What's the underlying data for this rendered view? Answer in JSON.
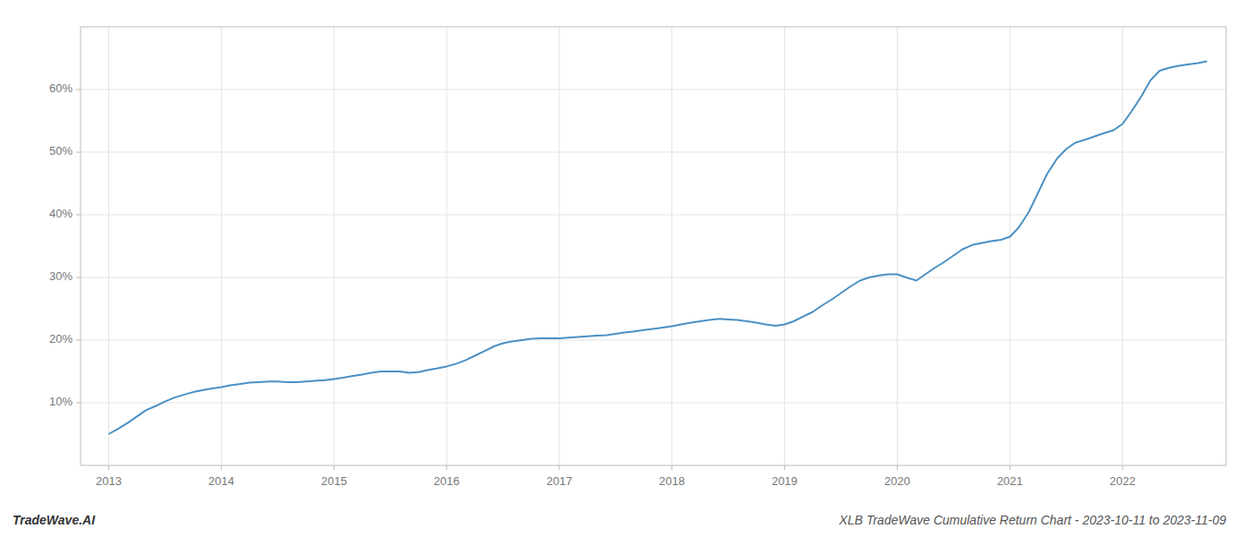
{
  "chart_data": {
    "type": "line",
    "title": "XLB TradeWave Cumulative Return Chart - 2023-10-11 to 2023-11-09",
    "annotations": [
      "TradeWave.AI"
    ],
    "color": "#4a90c4",
    "grid": true,
    "x": [
      2013.0,
      2013.08,
      2013.17,
      2013.25,
      2013.33,
      2013.42,
      2013.5,
      2013.58,
      2013.67,
      2013.75,
      2013.83,
      2013.92,
      2014.0,
      2014.08,
      2014.17,
      2014.25,
      2014.33,
      2014.42,
      2014.5,
      2014.58,
      2014.67,
      2014.75,
      2014.83,
      2014.92,
      2015.0,
      2015.08,
      2015.17,
      2015.25,
      2015.33,
      2015.42,
      2015.5,
      2015.58,
      2015.67,
      2015.75,
      2015.83,
      2015.92,
      2016.0,
      2016.08,
      2016.17,
      2016.25,
      2016.33,
      2016.42,
      2016.5,
      2016.58,
      2016.67,
      2016.75,
      2016.83,
      2016.92,
      2017.0,
      2017.08,
      2017.17,
      2017.25,
      2017.33,
      2017.42,
      2017.5,
      2017.58,
      2017.67,
      2017.75,
      2017.83,
      2017.92,
      2018.0,
      2018.08,
      2018.17,
      2018.25,
      2018.33,
      2018.42,
      2018.5,
      2018.58,
      2018.67,
      2018.75,
      2018.83,
      2018.92,
      2019.0,
      2019.08,
      2019.17,
      2019.25,
      2019.33,
      2019.42,
      2019.5,
      2019.58,
      2019.67,
      2019.75,
      2019.83,
      2019.92,
      2020.0,
      2020.08,
      2020.17,
      2020.25,
      2020.33,
      2020.42,
      2020.5,
      2020.58,
      2020.67,
      2020.75,
      2020.83,
      2020.92,
      2021.0,
      2021.08,
      2021.17,
      2021.25,
      2021.33,
      2021.42,
      2021.5,
      2021.58,
      2021.67,
      2021.75,
      2021.83,
      2021.92,
      2022.0,
      2022.08,
      2022.17,
      2022.25,
      2022.33,
      2022.42,
      2022.5,
      2022.58,
      2022.67,
      2022.75
    ],
    "values": [
      5.0,
      5.8,
      6.8,
      7.8,
      8.8,
      9.5,
      10.2,
      10.8,
      11.3,
      11.7,
      12.0,
      12.3,
      12.5,
      12.8,
      13.0,
      13.2,
      13.3,
      13.4,
      13.4,
      13.3,
      13.3,
      13.4,
      13.5,
      13.6,
      13.8,
      14.0,
      14.3,
      14.5,
      14.8,
      15.0,
      15.0,
      15.0,
      14.8,
      14.9,
      15.2,
      15.5,
      15.8,
      16.2,
      16.8,
      17.5,
      18.2,
      19.0,
      19.5,
      19.8,
      20.0,
      20.2,
      20.3,
      20.3,
      20.3,
      20.4,
      20.5,
      20.6,
      20.7,
      20.8,
      21.0,
      21.2,
      21.4,
      21.6,
      21.8,
      22.0,
      22.2,
      22.5,
      22.8,
      23.0,
      23.2,
      23.4,
      23.3,
      23.2,
      23.0,
      22.8,
      22.5,
      22.3,
      22.5,
      23.0,
      23.8,
      24.5,
      25.5,
      26.5,
      27.5,
      28.5,
      29.5,
      30.0,
      30.3,
      30.5,
      30.5,
      30.0,
      29.5,
      30.5,
      31.5,
      32.5,
      33.5,
      34.5,
      35.2,
      35.5,
      35.8,
      36.0,
      36.5,
      38.0,
      40.5,
      43.5,
      46.5,
      49.0,
      50.5,
      51.5,
      52.0,
      52.5,
      53.0,
      53.5,
      54.5,
      56.5,
      59.0,
      61.5,
      63.0,
      63.5,
      63.8,
      64.0,
      64.2,
      64.5
    ],
    "xlim": [
      2012.75,
      2022.92
    ],
    "ylim": [
      0,
      70
    ],
    "xticks": [
      2013,
      2014,
      2015,
      2016,
      2017,
      2018,
      2019,
      2020,
      2021,
      2022
    ],
    "yticks": [
      {
        "value": 10,
        "label": "10%"
      },
      {
        "value": 20,
        "label": "20%"
      },
      {
        "value": 30,
        "label": "30%"
      },
      {
        "value": 40,
        "label": "40%"
      },
      {
        "value": 50,
        "label": "50%"
      },
      {
        "value": 60,
        "label": "60%"
      }
    ]
  }
}
